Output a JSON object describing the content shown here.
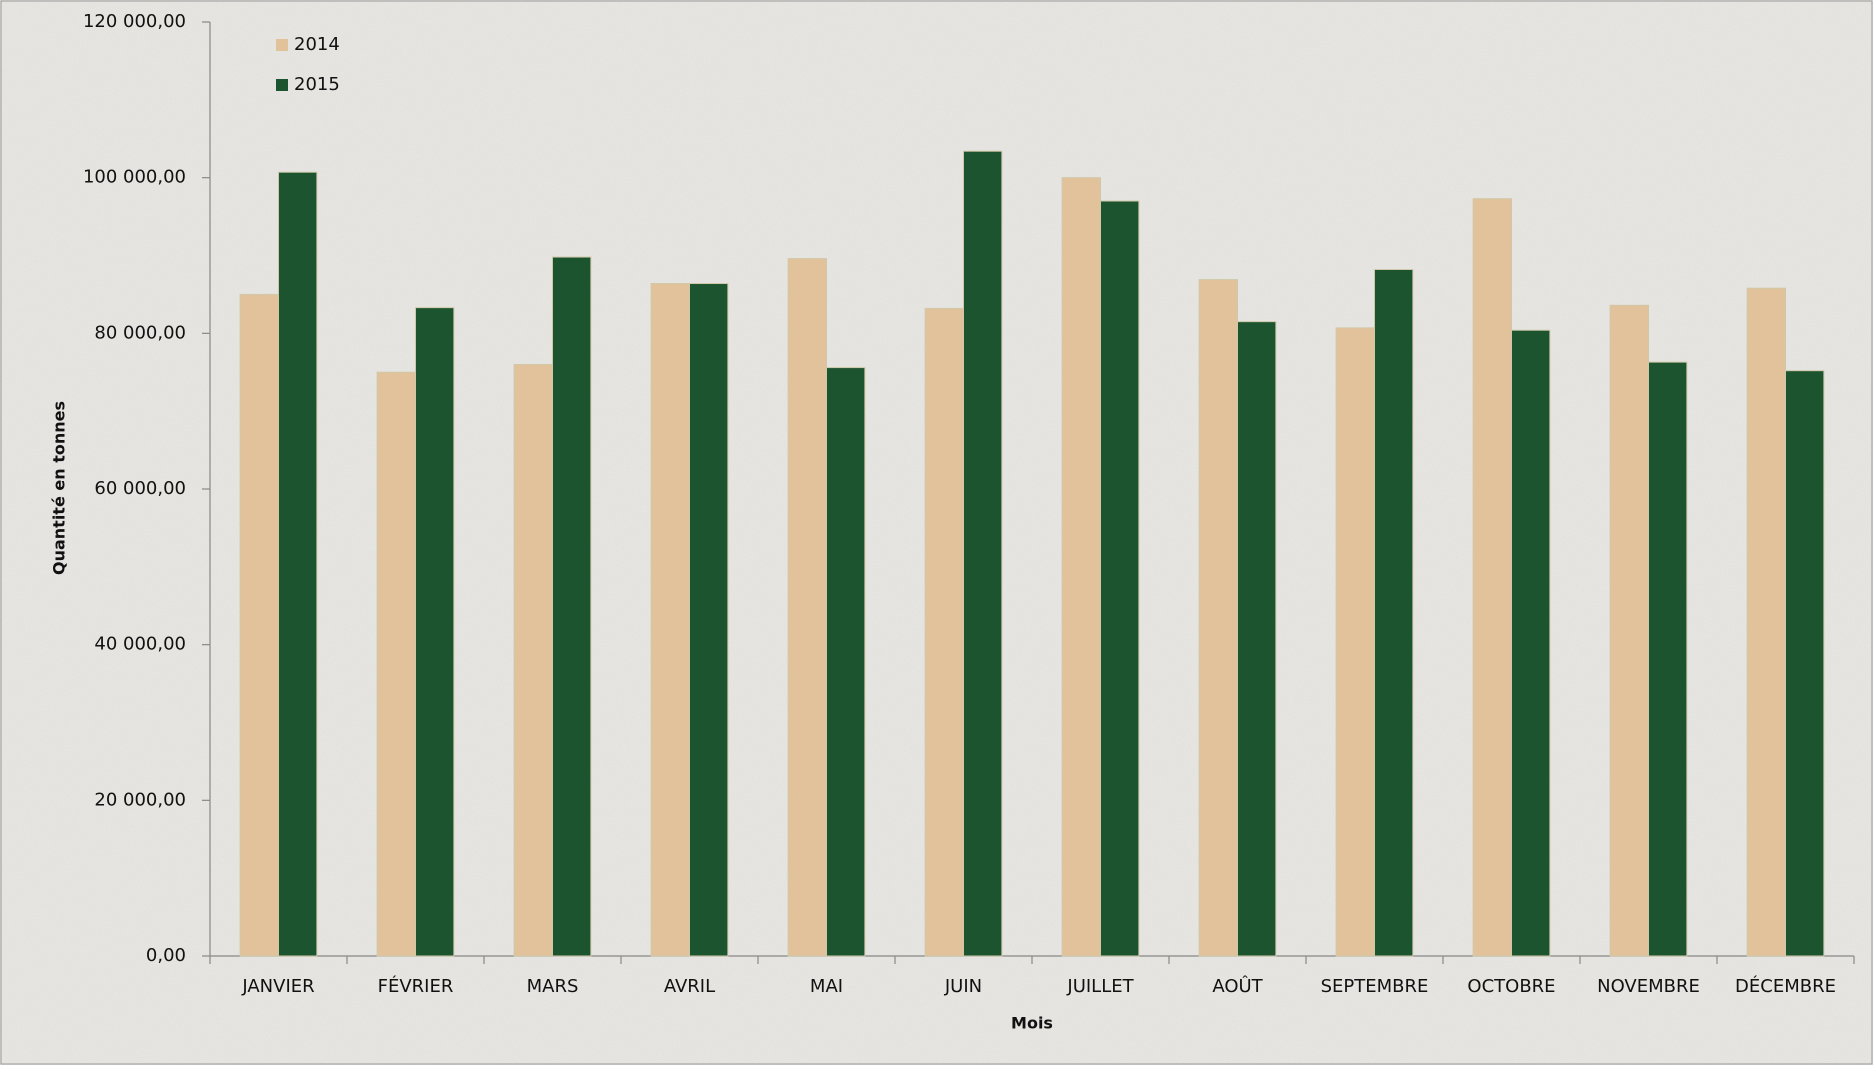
{
  "chart_data": {
    "type": "bar",
    "x_label": "Mois",
    "y_label": "Quantité en tonnes",
    "categories": [
      "JANVIER",
      "FÉVRIER",
      "MARS",
      "AVRIL",
      "MAI",
      "JUIN",
      "JUILLET",
      "AOÛT",
      "SEPTEMBRE",
      "OCTOBRE",
      "NOVEMBRE",
      "DÉCEMBRE"
    ],
    "series": [
      {
        "name": "2014",
        "color": "#e2c29a",
        "values": [
          85000,
          75000,
          76000,
          86400,
          89600,
          83200,
          100000,
          86900,
          80700,
          97300,
          83600,
          85800
        ]
      },
      {
        "name": "2015",
        "color": "#1d5430",
        "values": [
          100700,
          83300,
          89800,
          86400,
          75600,
          103400,
          97000,
          81500,
          88200,
          80400,
          76300,
          75200
        ]
      }
    ],
    "ylim": [
      0,
      120000
    ],
    "yticks": [
      {
        "value": 0,
        "label": "0,00"
      },
      {
        "value": 20000,
        "label": "20 000,00"
      },
      {
        "value": 40000,
        "label": "40 000,00"
      },
      {
        "value": 60000,
        "label": "60 000,00"
      },
      {
        "value": 80000,
        "label": "80 000,00"
      },
      {
        "value": 100000,
        "label": "100 000,00"
      },
      {
        "value": 120000,
        "label": "120 000,00"
      }
    ],
    "legend_position": "top-left",
    "grid": false
  }
}
